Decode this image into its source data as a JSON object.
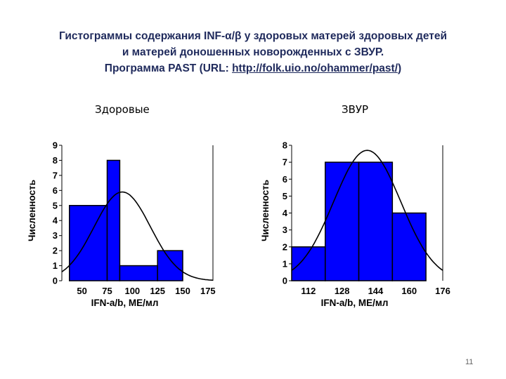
{
  "slide": {
    "title_line1": "Гистограммы содержания INF-α/β у здоровых матерей здоровых детей",
    "title_line2": "и матерей доношенных новорожденных с ЗВУР.",
    "title_line3_prefix": "Программа PAST (URL: ",
    "title_link": "http://folk.uio.no/ohammer/past/",
    "title_line3_suffix": ")",
    "page_number": "11"
  },
  "chart_data": [
    {
      "type": "bar",
      "title": "Здоровые",
      "xlabel": "IFN-a/b, МЕ/мл",
      "ylabel": "Численность",
      "bin_edges": [
        37.5,
        75,
        87.5,
        125,
        150
      ],
      "values": [
        5,
        8,
        1,
        2
      ],
      "x_ticks": [
        50,
        75,
        100,
        125,
        150,
        175
      ],
      "y_ticks": [
        0,
        1,
        2,
        3,
        4,
        5,
        6,
        7,
        8,
        9
      ],
      "xlim": [
        30,
        180
      ],
      "ylim": [
        0,
        9
      ],
      "bar_color": "#0000ff",
      "normal_curve": {
        "mean": 90,
        "sd": 28,
        "peak": 5.9
      }
    },
    {
      "type": "bar",
      "title": "ЗВУР",
      "xlabel": "IFN-a/b, МЕ/мл",
      "ylabel": "Численность",
      "bin_edges": [
        104,
        120,
        136,
        152,
        168
      ],
      "values": [
        2,
        7,
        7,
        4
      ],
      "x_ticks": [
        112,
        128,
        144,
        160,
        176
      ],
      "y_ticks": [
        0,
        1,
        2,
        3,
        4,
        5,
        6,
        7,
        8
      ],
      "xlim": [
        104,
        176
      ],
      "ylim": [
        0,
        8
      ],
      "bar_color": "#0000ff",
      "normal_curve": {
        "mean": 140,
        "sd": 16,
        "peak": 7.7
      }
    }
  ]
}
